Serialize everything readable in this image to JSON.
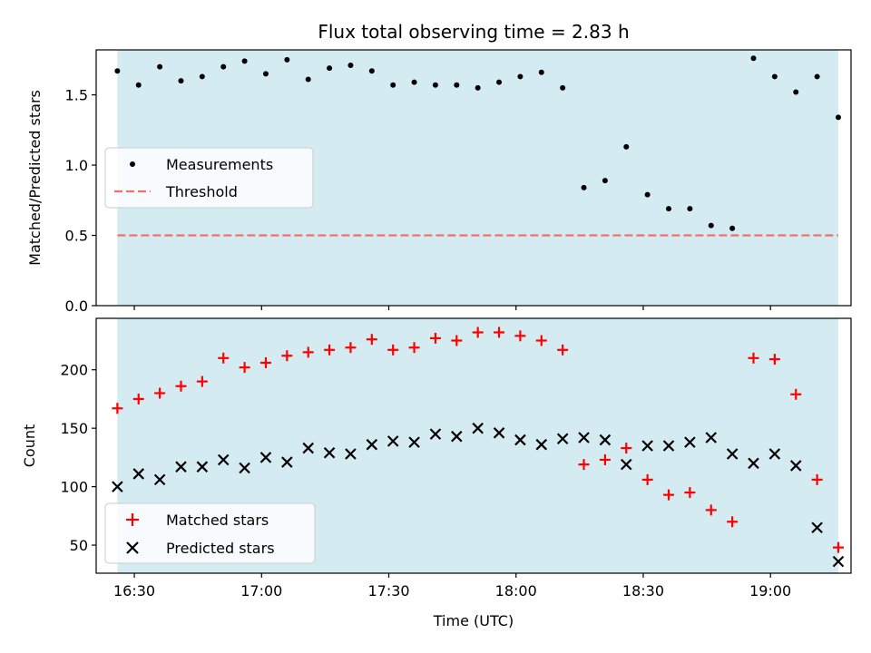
{
  "chart_data": [
    {
      "type": "scatter",
      "title": "Flux total observing time = 2.83 h",
      "xlabel": "",
      "ylabel": "Matched/Predicted stars",
      "xlim": [
        "16:21",
        "19:19"
      ],
      "ylim": [
        0,
        1.82
      ],
      "yticks": [
        0.0,
        0.5,
        1.0,
        1.5
      ],
      "ytick_labels": [
        "0.0",
        "0.5",
        "1.0",
        "1.5"
      ],
      "shaded_interval": [
        "16:26",
        "19:16"
      ],
      "series": [
        {
          "name": "Measurements",
          "marker": "dot",
          "color": "#000000",
          "x": [
            "16:26",
            "16:31",
            "16:36",
            "16:41",
            "16:46",
            "16:51",
            "16:56",
            "17:01",
            "17:06",
            "17:11",
            "17:16",
            "17:21",
            "17:26",
            "17:31",
            "17:36",
            "17:41",
            "17:46",
            "17:51",
            "17:56",
            "18:01",
            "18:06",
            "18:11",
            "18:16",
            "18:21",
            "18:26",
            "18:31",
            "18:36",
            "18:41",
            "18:46",
            "18:51",
            "18:56",
            "19:01",
            "19:06",
            "19:11",
            "19:16"
          ],
          "y": [
            1.67,
            1.57,
            1.7,
            1.6,
            1.63,
            1.7,
            1.74,
            1.65,
            1.75,
            1.61,
            1.69,
            1.71,
            1.67,
            1.57,
            1.59,
            1.57,
            1.57,
            1.55,
            1.59,
            1.63,
            1.66,
            1.55,
            0.84,
            0.89,
            1.13,
            0.79,
            0.69,
            0.69,
            0.57,
            0.55,
            1.76,
            1.63,
            1.52,
            1.63,
            1.34
          ]
        },
        {
          "name": "Threshold",
          "style": "dashed",
          "color": "#f07070",
          "y_const": 0.5
        }
      ],
      "legend": "center-left"
    },
    {
      "type": "scatter",
      "title": "",
      "xlabel": "Time (UTC)",
      "ylabel": "Count",
      "xlim": [
        "16:21",
        "19:19"
      ],
      "ylim": [
        26,
        244
      ],
      "yticks": [
        50,
        100,
        150,
        200
      ],
      "ytick_labels": [
        "50",
        "100",
        "150",
        "200"
      ],
      "xticks": [
        "16:30",
        "17:00",
        "17:30",
        "18:00",
        "18:30",
        "19:00"
      ],
      "xtick_labels": [
        "16:30",
        "17:00",
        "17:30",
        "18:00",
        "18:30",
        "19:00"
      ],
      "shaded_interval": [
        "16:26",
        "19:16"
      ],
      "series": [
        {
          "name": "Matched stars",
          "marker": "plus",
          "color": "#ff0000",
          "x": [
            "16:26",
            "16:31",
            "16:36",
            "16:41",
            "16:46",
            "16:51",
            "16:56",
            "17:01",
            "17:06",
            "17:11",
            "17:16",
            "17:21",
            "17:26",
            "17:31",
            "17:36",
            "17:41",
            "17:46",
            "17:51",
            "17:56",
            "18:01",
            "18:06",
            "18:11",
            "18:16",
            "18:21",
            "18:26",
            "18:31",
            "18:36",
            "18:41",
            "18:46",
            "18:51",
            "18:56",
            "19:01",
            "19:06",
            "19:11",
            "19:16"
          ],
          "y": [
            167,
            175,
            180,
            186,
            190,
            210,
            202,
            206,
            212,
            215,
            217,
            219,
            226,
            217,
            219,
            227,
            225,
            232,
            232,
            229,
            225,
            217,
            119,
            123,
            133,
            106,
            93,
            95,
            80,
            70,
            210,
            209,
            179,
            106,
            48
          ]
        },
        {
          "name": "Predicted stars",
          "marker": "x",
          "color": "#000000",
          "x": [
            "16:26",
            "16:31",
            "16:36",
            "16:41",
            "16:46",
            "16:51",
            "16:56",
            "17:01",
            "17:06",
            "17:11",
            "17:16",
            "17:21",
            "17:26",
            "17:31",
            "17:36",
            "17:41",
            "17:46",
            "17:51",
            "17:56",
            "18:01",
            "18:06",
            "18:11",
            "18:16",
            "18:21",
            "18:26",
            "18:31",
            "18:36",
            "18:41",
            "18:46",
            "18:51",
            "18:56",
            "19:01",
            "19:06",
            "19:11",
            "19:16"
          ],
          "y": [
            100,
            111,
            106,
            117,
            117,
            123,
            116,
            125,
            121,
            133,
            129,
            128,
            136,
            139,
            138,
            145,
            143,
            150,
            146,
            140,
            136,
            141,
            142,
            140,
            119,
            135,
            135,
            138,
            142,
            128,
            120,
            128,
            118,
            65,
            36
          ]
        }
      ],
      "legend": "lower-left"
    }
  ],
  "colors": {
    "shade": "#add8e6",
    "axes": "#000000"
  }
}
